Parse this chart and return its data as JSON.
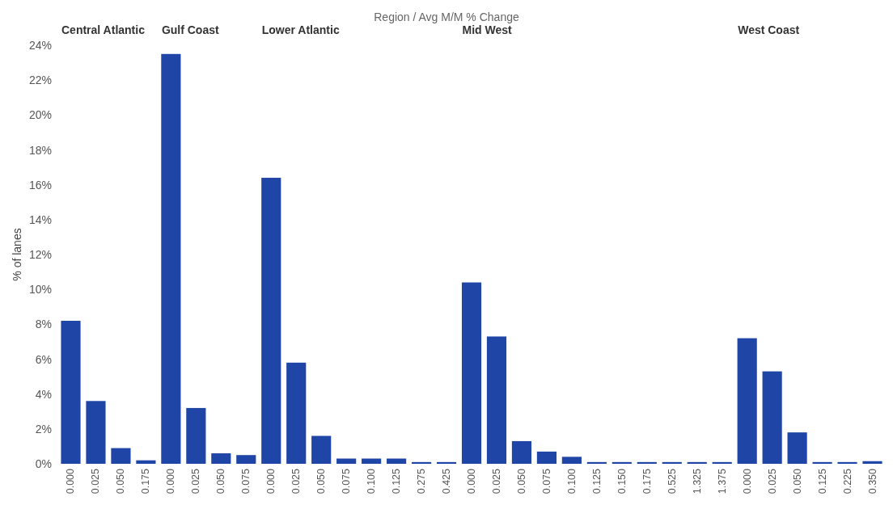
{
  "chart_data": [
    {
      "type": "bar",
      "title": "Central Atlantic",
      "annotations": [
        "Region  /  Avg M/M % Change"
      ],
      "ylabel": "% of lanes",
      "categories": [
        "0.000",
        "0.025",
        "0.050",
        "0.175"
      ],
      "values": [
        8.2,
        3.6,
        0.9,
        0.2
      ],
      "color": "#1f45a6",
      "ylim": [
        0,
        24
      ],
      "yticks": [
        {
          "value": 0,
          "label": "0%"
        },
        {
          "value": 2,
          "label": "2%"
        },
        {
          "value": 4,
          "label": "4%"
        },
        {
          "value": 6,
          "label": "6%"
        },
        {
          "value": 8,
          "label": "8%"
        },
        {
          "value": 10,
          "label": "10%"
        },
        {
          "value": 12,
          "label": "12%"
        },
        {
          "value": 14,
          "label": "14%"
        },
        {
          "value": 16,
          "label": "16%"
        },
        {
          "value": 18,
          "label": "18%"
        },
        {
          "value": 20,
          "label": "20%"
        },
        {
          "value": 22,
          "label": "22%"
        },
        {
          "value": 24,
          "label": "24%"
        }
      ],
      "grid": false
    },
    {
      "type": "bar",
      "title": "Gulf Coast",
      "categories": [
        "0.000",
        "0.025",
        "0.050",
        "0.075"
      ],
      "values": [
        23.5,
        3.2,
        0.6,
        0.5
      ],
      "color": "#1f45a6",
      "ylim": [
        0,
        24
      ],
      "tick_labels": "x",
      "grid": false
    },
    {
      "type": "bar",
      "title": "Lower Atlantic",
      "categories": [
        "0.000",
        "0.025",
        "0.050",
        "0.075",
        "0.100",
        "0.125",
        "0.275",
        "0.425"
      ],
      "values": [
        16.4,
        5.8,
        1.6,
        0.3,
        0.3,
        0.3,
        0.1,
        0.1
      ],
      "color": "#1f45a6",
      "ylim": [
        0,
        24
      ],
      "tick_labels": "x",
      "grid": false
    },
    {
      "type": "bar",
      "title": "Mid West",
      "categories": [
        "0.000",
        "0.025",
        "0.050",
        "0.075",
        "0.100",
        "0.125",
        "0.150",
        "0.175",
        "0.525",
        "1.325",
        "1.375"
      ],
      "values": [
        10.4,
        7.3,
        1.3,
        0.7,
        0.4,
        0.1,
        0.1,
        0.1,
        0.1,
        0.1,
        0.1
      ],
      "color": "#1f45a6",
      "ylim": [
        0,
        24
      ],
      "tick_labels": "x",
      "grid": false
    },
    {
      "type": "bar",
      "title": "West Coast",
      "categories": [
        "0.000",
        "0.025",
        "0.050",
        "0.125",
        "0.225",
        "0.350"
      ],
      "values": [
        7.2,
        5.3,
        1.8,
        0.1,
        0.1,
        0.15
      ],
      "color": "#1f45a6",
      "ylim": [
        0,
        24
      ],
      "tick_labels": "x",
      "grid": false
    }
  ]
}
